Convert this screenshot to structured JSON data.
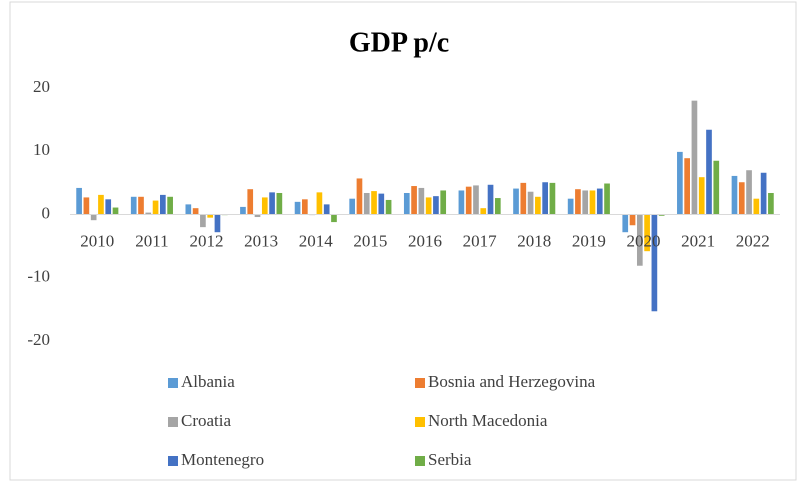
{
  "chart_data": {
    "type": "bar",
    "title": "GDP p/c",
    "categories": [
      "2010",
      "2011",
      "2012",
      "2013",
      "2014",
      "2015",
      "2016",
      "2017",
      "2018",
      "2019",
      "2020",
      "2021",
      "2022"
    ],
    "series": [
      {
        "name": "Albania",
        "color": "#5b9bd5",
        "values": [
          4.2,
          2.8,
          1.6,
          1.2,
          2.0,
          2.5,
          3.4,
          3.8,
          4.1,
          2.5,
          -2.8,
          9.9,
          6.1
        ]
      },
      {
        "name": "Bosnia and Herzegovina",
        "color": "#ed7d31",
        "values": [
          2.7,
          2.8,
          1.0,
          4.0,
          2.4,
          5.7,
          4.5,
          4.4,
          5.0,
          4.0,
          -1.7,
          8.9,
          5.1
        ]
      },
      {
        "name": "Croatia",
        "color": "#a5a5a5",
        "values": [
          -0.9,
          0.3,
          -2.0,
          -0.4,
          -0.1,
          3.4,
          4.2,
          4.6,
          3.6,
          3.8,
          -8.1,
          18.0,
          7.0
        ]
      },
      {
        "name": "North Macedonia",
        "color": "#ffc000",
        "values": [
          3.1,
          2.2,
          -0.5,
          2.7,
          3.5,
          3.7,
          2.7,
          1.0,
          2.8,
          3.8,
          -5.8,
          5.9,
          2.5
        ]
      },
      {
        "name": "Montenegro",
        "color": "#4472c4",
        "values": [
          2.4,
          3.1,
          -2.8,
          3.5,
          1.6,
          3.3,
          2.9,
          4.7,
          5.1,
          4.1,
          -15.3,
          13.4,
          6.6
        ]
      },
      {
        "name": "Serbia",
        "color": "#70ad47",
        "values": [
          1.1,
          2.8,
          -0.1,
          3.4,
          -1.2,
          2.3,
          3.8,
          2.6,
          5.0,
          4.9,
          -0.2,
          8.5,
          3.4
        ]
      }
    ],
    "ylim": [
      -20,
      20
    ],
    "yticks": [
      -20,
      -10,
      0,
      10,
      20
    ],
    "grid": false,
    "legend": "bottom"
  }
}
